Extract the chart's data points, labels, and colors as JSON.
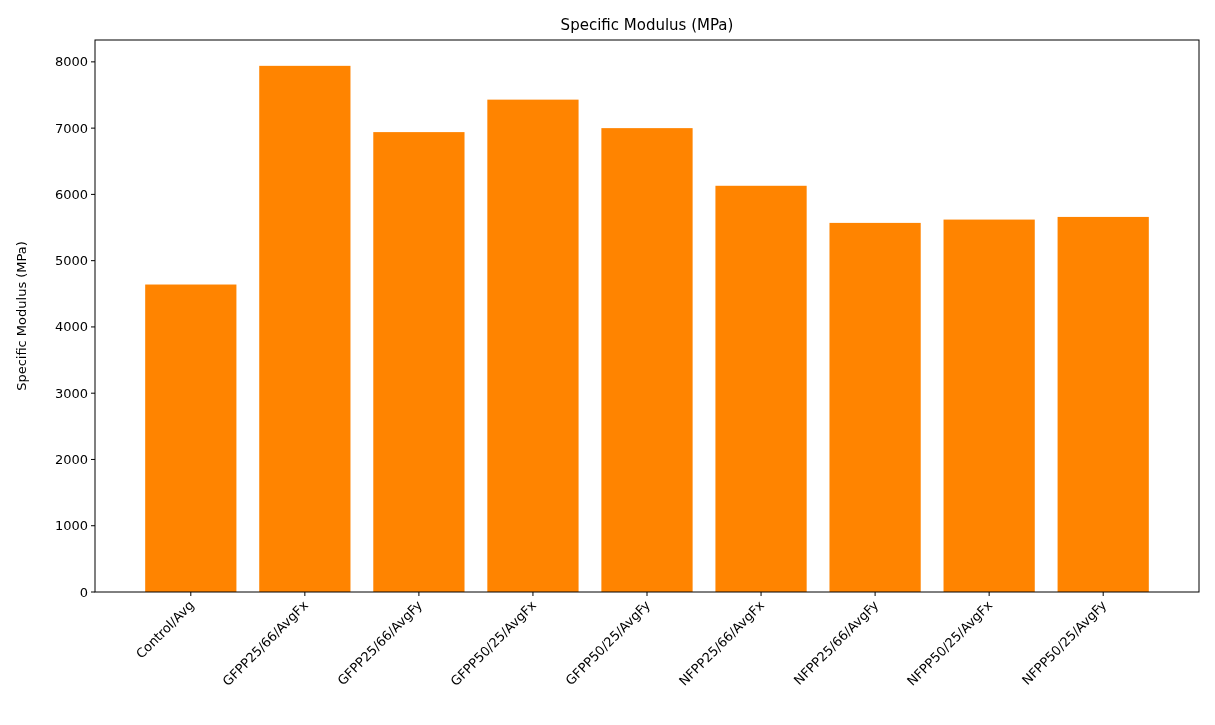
{
  "chart_data": {
    "type": "bar",
    "title": "Specific Modulus (MPa)",
    "ylabel": "Specific Modulus (MPa)",
    "categories": [
      "Control/Avg",
      "GFPP25/66/AvgFx",
      "GFPP25/66/AvgFy",
      "GFPP50/25/AvgFx",
      "GFPP50/25/AvgFy",
      "NFPP25/66/AvgFx",
      "NFPP25/66/AvgFy",
      "NFPP50/25/AvgFx",
      "NFPP50/25/AvgFy"
    ],
    "values": [
      4640,
      7940,
      6940,
      7430,
      7000,
      6130,
      5570,
      5620,
      5660
    ],
    "color": "#ff8400",
    "ylim": [
      0,
      8330
    ],
    "yticks": [
      0,
      1000,
      2000,
      3000,
      4000,
      5000,
      6000,
      7000,
      8000
    ]
  }
}
